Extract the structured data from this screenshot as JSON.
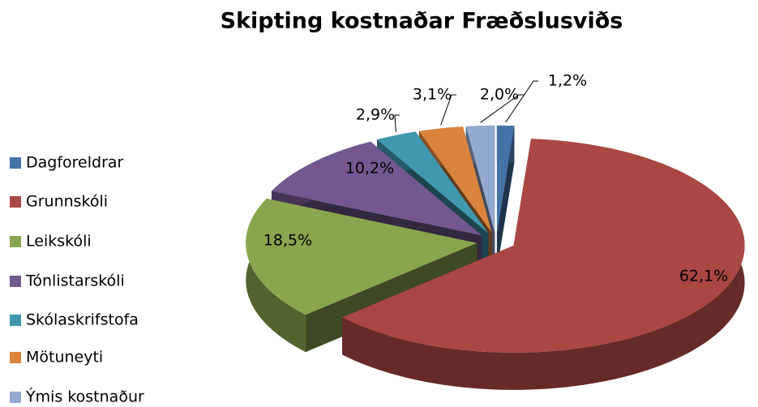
{
  "chart_data": {
    "type": "pie3d",
    "title": "Skipting kostnaðar Fræðslusviðs",
    "categories": [
      "Dagforeldrar",
      "Grunnskóli",
      "Leikskóli",
      "Tónlistarskóli",
      "Skólaskrifstofa",
      "Mötuneyti",
      "Ýmis kostnaður"
    ],
    "values": [
      1.2,
      62.1,
      18.5,
      10.2,
      2.9,
      3.1,
      2.0
    ],
    "value_labels": [
      "1,2%",
      "62,1%",
      "18,5%",
      "10,2%",
      "2,9%",
      "3,1%",
      "2,0%"
    ],
    "colors": [
      "#4572a7",
      "#aa4643",
      "#89a54e",
      "#71588f",
      "#4198af",
      "#db843d",
      "#93a9cf"
    ],
    "legend": "left"
  }
}
